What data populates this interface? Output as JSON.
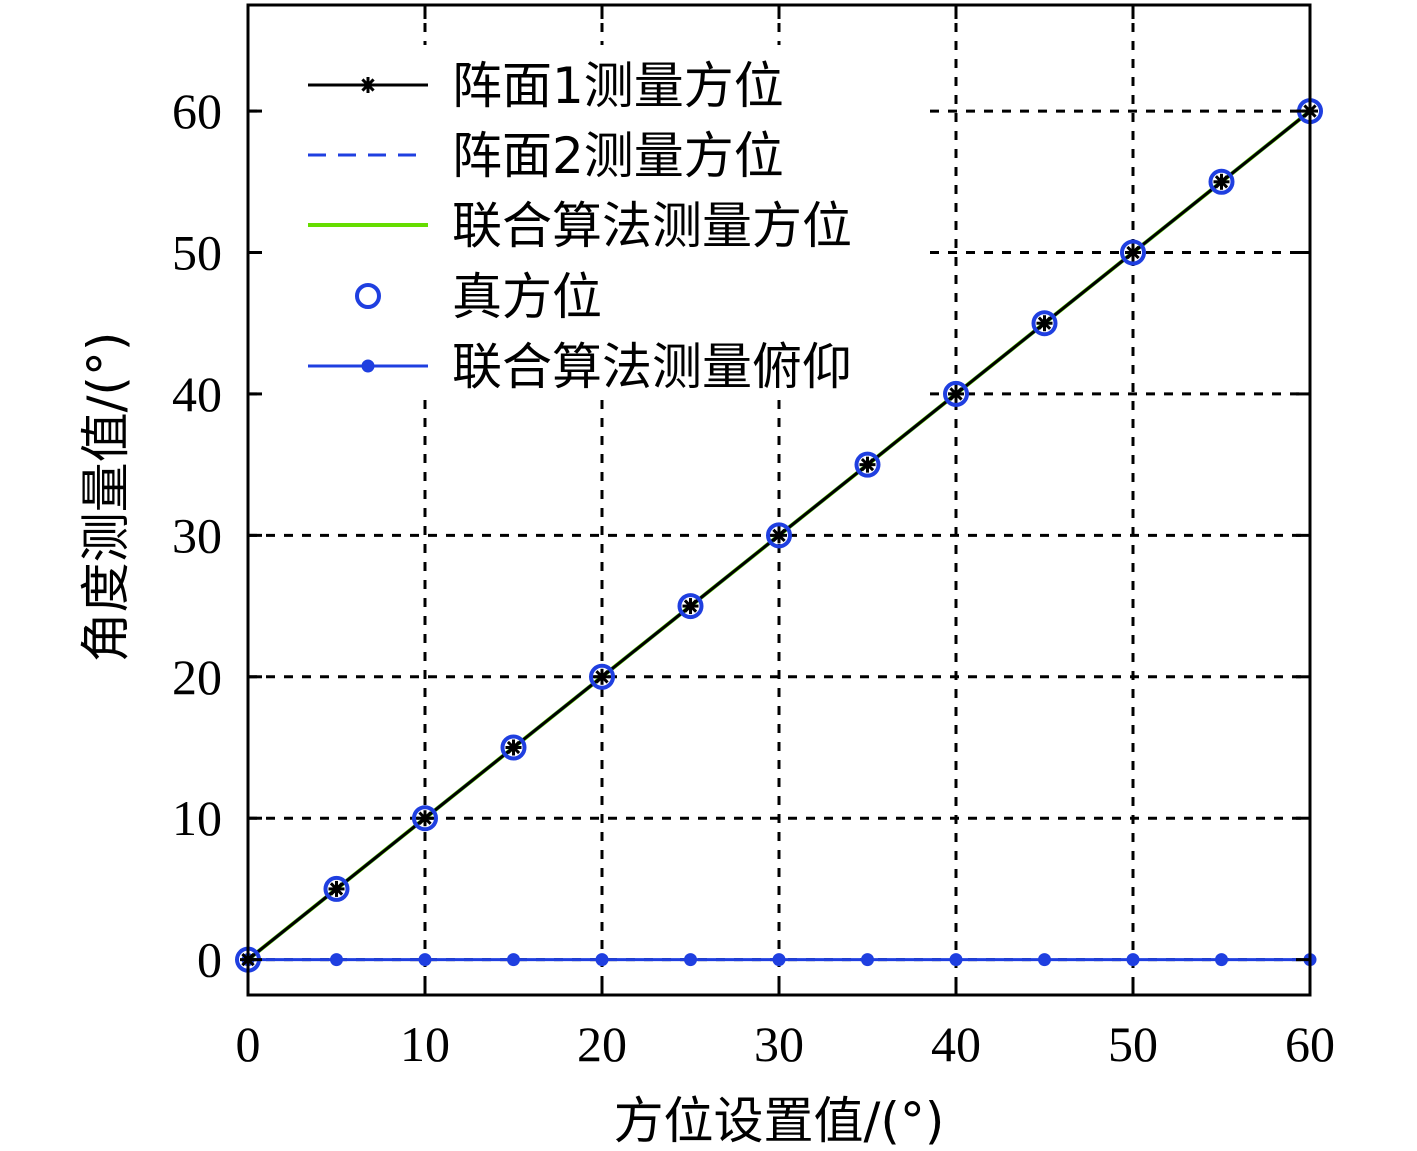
{
  "chart_data": {
    "type": "line",
    "xlabel": "方位设置值/(°)",
    "ylabel": "角度测量值/(°)",
    "xlim": [
      0,
      60
    ],
    "ylim": [
      -2.5,
      67.5
    ],
    "xticks": [
      0,
      10,
      20,
      30,
      40,
      50,
      60
    ],
    "yticks": [
      0,
      10,
      20,
      30,
      40,
      50,
      60
    ],
    "grid": true,
    "legend_position": "top-left",
    "x": [
      0,
      5,
      10,
      15,
      20,
      25,
      30,
      35,
      40,
      45,
      50,
      55,
      60
    ],
    "series": [
      {
        "name": "阵面1测量方位",
        "color": "#000000",
        "line": "solid",
        "marker": "star",
        "values": [
          0,
          5,
          10,
          15,
          20,
          25,
          30,
          35,
          40,
          45,
          50,
          55,
          60
        ]
      },
      {
        "name": "阵面2测量方位",
        "color": "#1f3fe0",
        "line": "dashed",
        "marker": "none",
        "values": [
          0,
          5,
          10,
          15,
          20,
          25,
          30,
          35,
          40,
          45,
          50,
          55,
          60
        ]
      },
      {
        "name": "联合算法测量方位",
        "color": "#66dd00",
        "line": "solid",
        "marker": "none",
        "values": [
          0,
          5,
          10,
          15,
          20,
          25,
          30,
          35,
          40,
          45,
          50,
          55,
          60
        ]
      },
      {
        "name": "真方位",
        "color": "#1f3fe0",
        "line": "none",
        "marker": "circle",
        "values": [
          0,
          5,
          10,
          15,
          20,
          25,
          30,
          35,
          40,
          45,
          50,
          55,
          60
        ]
      },
      {
        "name": "联合算法测量俯仰",
        "color": "#1f3fe0",
        "line": "solid",
        "marker": "dot",
        "values": [
          0,
          0,
          0,
          0,
          0,
          0,
          0,
          0,
          0,
          0,
          0,
          0,
          0
        ]
      }
    ]
  }
}
